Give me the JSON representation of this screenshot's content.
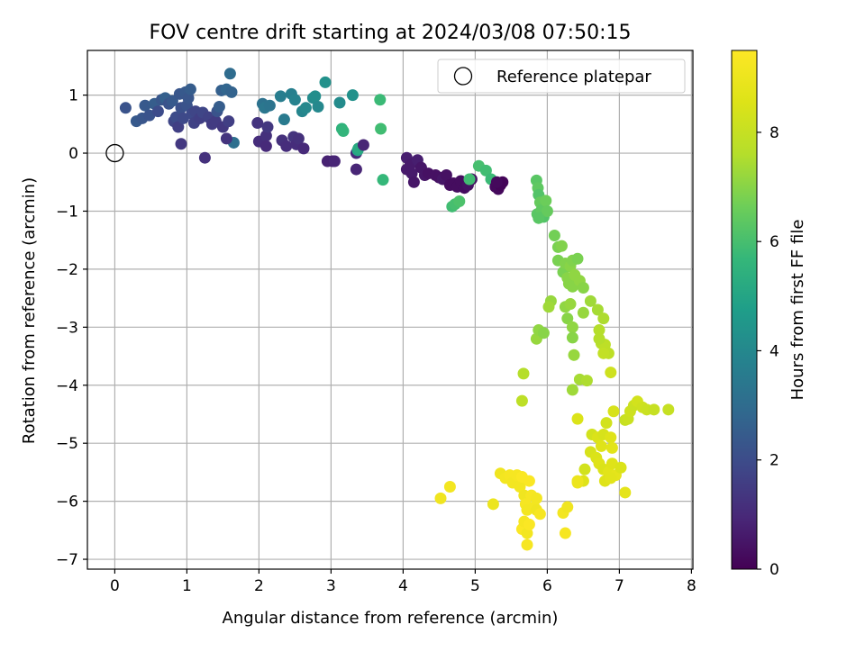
{
  "chart_data": {
    "type": "scatter",
    "title": "FOV centre drift starting at 2024/03/08 07:50:15",
    "xlabel": "Angular distance from reference (arcmin)",
    "ylabel": "Rotation from reference (arcmin)",
    "xlim": [
      -0.38,
      8.02
    ],
    "ylim": [
      -7.17,
      1.77
    ],
    "xticks": [
      0,
      1,
      2,
      3,
      4,
      5,
      6,
      7,
      8
    ],
    "yticks": [
      1,
      0,
      -1,
      -2,
      -3,
      -4,
      -5,
      -6,
      -7
    ],
    "grid": true,
    "legend": {
      "placement": "top-right",
      "entries": [
        "Reference platepar"
      ]
    },
    "reference_point": {
      "x": 0,
      "y": 0,
      "label": "Reference platepar"
    },
    "colorbar": {
      "label": "Hours from first FF file",
      "range": [
        0,
        9.5
      ],
      "ticks": [
        0,
        2,
        4,
        6,
        8
      ],
      "colormap": "viridis"
    },
    "points": [
      {
        "x": 0.15,
        "y": 0.78,
        "t": 2.2
      },
      {
        "x": 0.3,
        "y": 0.55,
        "t": 2.4
      },
      {
        "x": 0.38,
        "y": 0.6,
        "t": 2.3
      },
      {
        "x": 0.42,
        "y": 0.82,
        "t": 2.4
      },
      {
        "x": 0.48,
        "y": 0.65,
        "t": 2.2
      },
      {
        "x": 0.55,
        "y": 0.85,
        "t": 2.5
      },
      {
        "x": 0.6,
        "y": 0.72,
        "t": 2.0
      },
      {
        "x": 0.65,
        "y": 0.92,
        "t": 2.3
      },
      {
        "x": 0.7,
        "y": 0.95,
        "t": 2.6
      },
      {
        "x": 0.75,
        "y": 0.85,
        "t": 2.2
      },
      {
        "x": 0.8,
        "y": 0.9,
        "t": 2.4
      },
      {
        "x": 0.82,
        "y": 0.55,
        "t": 1.8
      },
      {
        "x": 0.85,
        "y": 0.62,
        "t": 2.0
      },
      {
        "x": 0.88,
        "y": 0.45,
        "t": 1.6
      },
      {
        "x": 0.9,
        "y": 1.02,
        "t": 2.3
      },
      {
        "x": 0.92,
        "y": 0.78,
        "t": 2.1
      },
      {
        "x": 0.95,
        "y": 0.6,
        "t": 1.9
      },
      {
        "x": 0.98,
        "y": 1.05,
        "t": 2.4
      },
      {
        "x": 1.0,
        "y": 0.82,
        "t": 2.2
      },
      {
        "x": 1.02,
        "y": 0.95,
        "t": 2.3
      },
      {
        "x": 1.05,
        "y": 1.1,
        "t": 2.5
      },
      {
        "x": 1.07,
        "y": 0.68,
        "t": 1.9
      },
      {
        "x": 1.1,
        "y": 0.52,
        "t": 1.7
      },
      {
        "x": 1.12,
        "y": 0.72,
        "t": 1.8
      },
      {
        "x": 0.92,
        "y": 0.16,
        "t": 1.4
      },
      {
        "x": 1.25,
        "y": -0.08,
        "t": 1.2
      },
      {
        "x": 1.18,
        "y": 0.6,
        "t": 1.6
      },
      {
        "x": 1.22,
        "y": 0.7,
        "t": 1.8
      },
      {
        "x": 1.3,
        "y": 0.62,
        "t": 1.7
      },
      {
        "x": 1.35,
        "y": 0.5,
        "t": 1.5
      },
      {
        "x": 1.4,
        "y": 0.55,
        "t": 1.5
      },
      {
        "x": 1.42,
        "y": 0.72,
        "t": 2.2
      },
      {
        "x": 1.45,
        "y": 0.8,
        "t": 2.5
      },
      {
        "x": 1.48,
        "y": 1.08,
        "t": 2.6
      },
      {
        "x": 1.5,
        "y": 0.45,
        "t": 1.4
      },
      {
        "x": 1.55,
        "y": 1.1,
        "t": 2.8
      },
      {
        "x": 1.58,
        "y": 0.55,
        "t": 1.6
      },
      {
        "x": 1.6,
        "y": 1.37,
        "t": 3.0
      },
      {
        "x": 1.62,
        "y": 1.05,
        "t": 2.7
      },
      {
        "x": 1.65,
        "y": 0.18,
        "t": 3.1
      },
      {
        "x": 1.55,
        "y": 0.25,
        "t": 1.3
      },
      {
        "x": 1.98,
        "y": 0.52,
        "t": 1.3
      },
      {
        "x": 2.0,
        "y": 0.2,
        "t": 1.1
      },
      {
        "x": 2.05,
        "y": 0.85,
        "t": 3.2
      },
      {
        "x": 2.08,
        "y": 0.78,
        "t": 3.4
      },
      {
        "x": 2.1,
        "y": 0.3,
        "t": 1.2
      },
      {
        "x": 2.12,
        "y": 0.45,
        "t": 1.4
      },
      {
        "x": 2.15,
        "y": 0.82,
        "t": 3.3
      },
      {
        "x": 2.1,
        "y": 0.12,
        "t": 1.0
      },
      {
        "x": 2.3,
        "y": 0.98,
        "t": 3.6
      },
      {
        "x": 2.32,
        "y": 0.22,
        "t": 1.2
      },
      {
        "x": 2.35,
        "y": 0.58,
        "t": 3.5
      },
      {
        "x": 2.38,
        "y": 0.12,
        "t": 1.1
      },
      {
        "x": 2.45,
        "y": 1.02,
        "t": 3.7
      },
      {
        "x": 2.48,
        "y": 0.28,
        "t": 1.3
      },
      {
        "x": 2.5,
        "y": 0.92,
        "t": 3.8
      },
      {
        "x": 2.52,
        "y": 0.15,
        "t": 1.1
      },
      {
        "x": 2.55,
        "y": 0.25,
        "t": 1.2
      },
      {
        "x": 2.6,
        "y": 0.72,
        "t": 3.9
      },
      {
        "x": 2.62,
        "y": 0.08,
        "t": 1.0
      },
      {
        "x": 2.65,
        "y": 0.78,
        "t": 4.0
      },
      {
        "x": 2.75,
        "y": 0.95,
        "t": 4.1
      },
      {
        "x": 2.78,
        "y": 0.98,
        "t": 4.2
      },
      {
        "x": 2.82,
        "y": 0.8,
        "t": 4.0
      },
      {
        "x": 2.92,
        "y": 1.22,
        "t": 4.3
      },
      {
        "x": 2.95,
        "y": -0.14,
        "t": 0.8
      },
      {
        "x": 3.02,
        "y": -0.14,
        "t": 0.8
      },
      {
        "x": 3.05,
        "y": -0.14,
        "t": 0.9
      },
      {
        "x": 3.12,
        "y": 0.87,
        "t": 4.1
      },
      {
        "x": 3.15,
        "y": 0.42,
        "t": 5.5
      },
      {
        "x": 3.17,
        "y": 0.38,
        "t": 5.6
      },
      {
        "x": 3.3,
        "y": 1.0,
        "t": 4.3
      },
      {
        "x": 3.35,
        "y": 0.0,
        "t": 1.0
      },
      {
        "x": 3.37,
        "y": 0.05,
        "t": 5.0
      },
      {
        "x": 3.38,
        "y": 0.08,
        "t": 5.2
      },
      {
        "x": 3.35,
        "y": -0.28,
        "t": 0.9
      },
      {
        "x": 3.45,
        "y": 0.14,
        "t": 0.9
      },
      {
        "x": 3.68,
        "y": 0.92,
        "t": 5.8
      },
      {
        "x": 3.69,
        "y": 0.42,
        "t": 5.9
      },
      {
        "x": 3.72,
        "y": -0.46,
        "t": 5.7
      },
      {
        "x": 4.05,
        "y": -0.08,
        "t": 0.7
      },
      {
        "x": 4.05,
        "y": -0.28,
        "t": 0.6
      },
      {
        "x": 4.1,
        "y": -0.2,
        "t": 0.6
      },
      {
        "x": 4.12,
        "y": -0.35,
        "t": 0.6
      },
      {
        "x": 4.15,
        "y": -0.5,
        "t": 0.5
      },
      {
        "x": 4.2,
        "y": -0.12,
        "t": 0.7
      },
      {
        "x": 4.25,
        "y": -0.25,
        "t": 0.5
      },
      {
        "x": 4.3,
        "y": -0.38,
        "t": 0.5
      },
      {
        "x": 4.35,
        "y": -0.35,
        "t": 0.4
      },
      {
        "x": 4.45,
        "y": -0.38,
        "t": 0.4
      },
      {
        "x": 4.5,
        "y": -0.42,
        "t": 0.4
      },
      {
        "x": 4.55,
        "y": -0.45,
        "t": 0.5
      },
      {
        "x": 4.6,
        "y": -0.38,
        "t": 0.4
      },
      {
        "x": 4.65,
        "y": -0.55,
        "t": 0.3
      },
      {
        "x": 4.7,
        "y": -0.52,
        "t": 0.3
      },
      {
        "x": 4.75,
        "y": -0.58,
        "t": 0.3
      },
      {
        "x": 4.8,
        "y": -0.48,
        "t": 0.3
      },
      {
        "x": 4.85,
        "y": -0.6,
        "t": 0.3
      },
      {
        "x": 4.9,
        "y": -0.55,
        "t": 0.4
      },
      {
        "x": 4.95,
        "y": -0.45,
        "t": 0.4
      },
      {
        "x": 4.68,
        "y": -0.92,
        "t": 5.9
      },
      {
        "x": 4.72,
        "y": -0.88,
        "t": 6.0
      },
      {
        "x": 4.78,
        "y": -0.83,
        "t": 6.1
      },
      {
        "x": 4.92,
        "y": -0.45,
        "t": 5.9
      },
      {
        "x": 5.05,
        "y": -0.22,
        "t": 6.0
      },
      {
        "x": 5.15,
        "y": -0.3,
        "t": 5.9
      },
      {
        "x": 5.22,
        "y": -0.45,
        "t": 5.8
      },
      {
        "x": 5.28,
        "y": -0.58,
        "t": 0.2
      },
      {
        "x": 5.32,
        "y": -0.62,
        "t": 0.2
      },
      {
        "x": 5.35,
        "y": -0.55,
        "t": 0.1
      },
      {
        "x": 5.38,
        "y": -0.5,
        "t": 0.1
      },
      {
        "x": 5.3,
        "y": -0.5,
        "t": 0.2
      },
      {
        "x": 5.85,
        "y": -0.47,
        "t": 6.3
      },
      {
        "x": 5.87,
        "y": -0.6,
        "t": 6.4
      },
      {
        "x": 5.88,
        "y": -0.72,
        "t": 6.2
      },
      {
        "x": 5.9,
        "y": -0.85,
        "t": 6.5
      },
      {
        "x": 5.86,
        "y": -1.05,
        "t": 6.3
      },
      {
        "x": 5.92,
        "y": -0.98,
        "t": 6.4
      },
      {
        "x": 5.95,
        "y": -1.1,
        "t": 6.2
      },
      {
        "x": 5.98,
        "y": -0.82,
        "t": 6.6
      },
      {
        "x": 6.0,
        "y": -1.0,
        "t": 6.5
      },
      {
        "x": 5.88,
        "y": -1.12,
        "t": 6.3
      },
      {
        "x": 6.1,
        "y": -1.42,
        "t": 6.7
      },
      {
        "x": 6.15,
        "y": -1.62,
        "t": 6.8
      },
      {
        "x": 6.2,
        "y": -1.6,
        "t": 6.9
      },
      {
        "x": 6.15,
        "y": -1.85,
        "t": 6.8
      },
      {
        "x": 6.22,
        "y": -2.05,
        "t": 6.8
      },
      {
        "x": 6.25,
        "y": -1.9,
        "t": 6.9
      },
      {
        "x": 6.28,
        "y": -2.15,
        "t": 7.0
      },
      {
        "x": 6.3,
        "y": -2.25,
        "t": 7.0
      },
      {
        "x": 6.32,
        "y": -1.95,
        "t": 7.0
      },
      {
        "x": 6.35,
        "y": -1.85,
        "t": 6.9
      },
      {
        "x": 6.38,
        "y": -2.1,
        "t": 7.1
      },
      {
        "x": 6.42,
        "y": -1.82,
        "t": 6.8
      },
      {
        "x": 6.35,
        "y": -2.3,
        "t": 7.0
      },
      {
        "x": 6.45,
        "y": -2.2,
        "t": 7.1
      },
      {
        "x": 6.5,
        "y": -2.32,
        "t": 7.0
      },
      {
        "x": 6.05,
        "y": -2.55,
        "t": 7.2
      },
      {
        "x": 6.02,
        "y": -2.65,
        "t": 7.3
      },
      {
        "x": 6.25,
        "y": -2.65,
        "t": 7.1
      },
      {
        "x": 6.28,
        "y": -2.85,
        "t": 7.0
      },
      {
        "x": 6.32,
        "y": -2.6,
        "t": 7.2
      },
      {
        "x": 6.35,
        "y": -3.0,
        "t": 7.1
      },
      {
        "x": 6.5,
        "y": -2.75,
        "t": 7.2
      },
      {
        "x": 6.6,
        "y": -2.55,
        "t": 7.3
      },
      {
        "x": 6.7,
        "y": -2.7,
        "t": 7.4
      },
      {
        "x": 6.78,
        "y": -2.85,
        "t": 7.5
      },
      {
        "x": 6.72,
        "y": -3.05,
        "t": 7.6
      },
      {
        "x": 6.75,
        "y": -3.28,
        "t": 7.7
      },
      {
        "x": 6.8,
        "y": -3.3,
        "t": 7.8
      },
      {
        "x": 6.72,
        "y": -3.2,
        "t": 7.6
      },
      {
        "x": 6.85,
        "y": -3.45,
        "t": 7.8
      },
      {
        "x": 6.78,
        "y": -3.45,
        "t": 7.9
      },
      {
        "x": 5.85,
        "y": -3.2,
        "t": 7.2
      },
      {
        "x": 5.88,
        "y": -3.05,
        "t": 7.1
      },
      {
        "x": 5.95,
        "y": -3.1,
        "t": 7.0
      },
      {
        "x": 6.35,
        "y": -3.18,
        "t": 7.0
      },
      {
        "x": 6.37,
        "y": -3.48,
        "t": 7.2
      },
      {
        "x": 5.67,
        "y": -3.8,
        "t": 7.6
      },
      {
        "x": 5.65,
        "y": -4.27,
        "t": 7.8
      },
      {
        "x": 6.35,
        "y": -4.08,
        "t": 7.3
      },
      {
        "x": 6.45,
        "y": -3.9,
        "t": 7.4
      },
      {
        "x": 6.55,
        "y": -3.92,
        "t": 7.5
      },
      {
        "x": 6.88,
        "y": -3.78,
        "t": 8.2
      },
      {
        "x": 6.92,
        "y": -4.45,
        "t": 8.4
      },
      {
        "x": 6.42,
        "y": -4.58,
        "t": 8.5
      },
      {
        "x": 6.62,
        "y": -4.85,
        "t": 8.3
      },
      {
        "x": 6.7,
        "y": -4.9,
        "t": 8.5
      },
      {
        "x": 6.75,
        "y": -5.05,
        "t": 8.6
      },
      {
        "x": 6.78,
        "y": -4.85,
        "t": 8.4
      },
      {
        "x": 6.82,
        "y": -4.65,
        "t": 8.3
      },
      {
        "x": 6.88,
        "y": -4.9,
        "t": 8.6
      },
      {
        "x": 6.9,
        "y": -5.08,
        "t": 8.7
      },
      {
        "x": 6.6,
        "y": -5.15,
        "t": 8.4
      },
      {
        "x": 6.68,
        "y": -5.25,
        "t": 8.5
      },
      {
        "x": 6.72,
        "y": -5.35,
        "t": 8.6
      },
      {
        "x": 6.78,
        "y": -5.45,
        "t": 8.5
      },
      {
        "x": 6.85,
        "y": -5.5,
        "t": 8.7
      },
      {
        "x": 6.9,
        "y": -5.35,
        "t": 8.6
      },
      {
        "x": 6.95,
        "y": -5.55,
        "t": 8.8
      },
      {
        "x": 6.8,
        "y": -5.65,
        "t": 8.6
      },
      {
        "x": 6.88,
        "y": -5.6,
        "t": 8.7
      },
      {
        "x": 7.02,
        "y": -5.42,
        "t": 8.5
      },
      {
        "x": 6.52,
        "y": -5.45,
        "t": 8.3
      },
      {
        "x": 6.5,
        "y": -5.65,
        "t": 8.6
      },
      {
        "x": 6.42,
        "y": -5.65,
        "t": 9.0
      },
      {
        "x": 7.08,
        "y": -5.85,
        "t": 8.8
      },
      {
        "x": 7.08,
        "y": -4.6,
        "t": 8.0
      },
      {
        "x": 7.12,
        "y": -4.58,
        "t": 8.1
      },
      {
        "x": 7.15,
        "y": -4.45,
        "t": 8.2
      },
      {
        "x": 7.2,
        "y": -4.35,
        "t": 8.1
      },
      {
        "x": 7.25,
        "y": -4.28,
        "t": 8.3
      },
      {
        "x": 7.32,
        "y": -4.38,
        "t": 8.2
      },
      {
        "x": 7.38,
        "y": -4.42,
        "t": 8.1
      },
      {
        "x": 7.48,
        "y": -4.42,
        "t": 8.0
      },
      {
        "x": 7.68,
        "y": -4.42,
        "t": 8.0
      },
      {
        "x": 4.52,
        "y": -5.95,
        "t": 9.1
      },
      {
        "x": 4.65,
        "y": -5.75,
        "t": 9.2
      },
      {
        "x": 5.25,
        "y": -6.05,
        "t": 9.0
      },
      {
        "x": 5.35,
        "y": -5.52,
        "t": 9.1
      },
      {
        "x": 5.42,
        "y": -5.6,
        "t": 9.2
      },
      {
        "x": 5.48,
        "y": -5.55,
        "t": 9.3
      },
      {
        "x": 5.52,
        "y": -5.68,
        "t": 9.2
      },
      {
        "x": 5.58,
        "y": -5.55,
        "t": 9.3
      },
      {
        "x": 5.62,
        "y": -5.75,
        "t": 9.2
      },
      {
        "x": 5.65,
        "y": -5.58,
        "t": 9.4
      },
      {
        "x": 5.68,
        "y": -5.9,
        "t": 9.1
      },
      {
        "x": 5.7,
        "y": -6.05,
        "t": 9.3
      },
      {
        "x": 5.72,
        "y": -6.15,
        "t": 9.2
      },
      {
        "x": 5.75,
        "y": -5.65,
        "t": 9.4
      },
      {
        "x": 5.78,
        "y": -5.9,
        "t": 9.3
      },
      {
        "x": 5.82,
        "y": -6.1,
        "t": 9.2
      },
      {
        "x": 5.85,
        "y": -6.15,
        "t": 9.1
      },
      {
        "x": 5.9,
        "y": -6.22,
        "t": 9.3
      },
      {
        "x": 5.65,
        "y": -6.48,
        "t": 9.4
      },
      {
        "x": 5.68,
        "y": -6.35,
        "t": 9.3
      },
      {
        "x": 5.72,
        "y": -6.55,
        "t": 9.2
      },
      {
        "x": 5.75,
        "y": -6.4,
        "t": 9.4
      },
      {
        "x": 5.72,
        "y": -6.75,
        "t": 9.3
      },
      {
        "x": 6.22,
        "y": -6.2,
        "t": 9.2
      },
      {
        "x": 6.28,
        "y": -6.1,
        "t": 9.1
      },
      {
        "x": 6.25,
        "y": -6.55,
        "t": 9.3
      },
      {
        "x": 6.42,
        "y": -5.68,
        "t": 9.0
      },
      {
        "x": 5.85,
        "y": -5.95,
        "t": 9.2
      }
    ]
  }
}
